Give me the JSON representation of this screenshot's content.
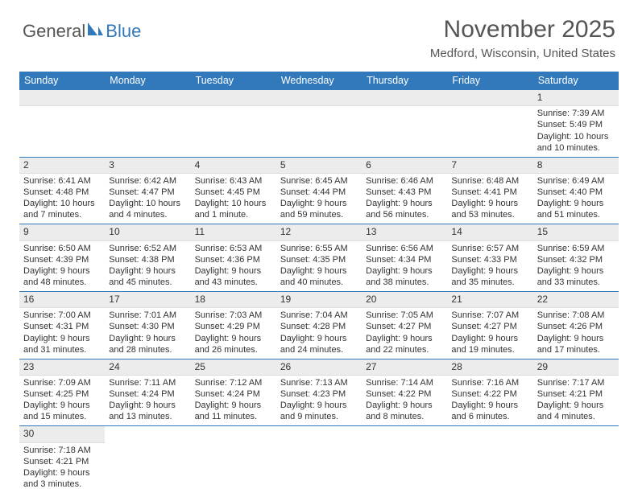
{
  "logo": {
    "part1": "General",
    "part2": "Blue"
  },
  "title": {
    "month": "November 2025",
    "location": "Medford, Wisconsin, United States"
  },
  "colors": {
    "headerBlue": "#3279bb",
    "grayBg": "#ececec",
    "text": "#333333"
  },
  "dayHeaders": [
    "Sunday",
    "Monday",
    "Tuesday",
    "Wednesday",
    "Thursday",
    "Friday",
    "Saturday"
  ],
  "weeks": [
    [
      null,
      null,
      null,
      null,
      null,
      null,
      {
        "n": "1",
        "sr": "Sunrise: 7:39 AM",
        "ss": "Sunset: 5:49 PM",
        "d1": "Daylight: 10 hours",
        "d2": "and 10 minutes."
      }
    ],
    [
      {
        "n": "2",
        "sr": "Sunrise: 6:41 AM",
        "ss": "Sunset: 4:48 PM",
        "d1": "Daylight: 10 hours",
        "d2": "and 7 minutes."
      },
      {
        "n": "3",
        "sr": "Sunrise: 6:42 AM",
        "ss": "Sunset: 4:47 PM",
        "d1": "Daylight: 10 hours",
        "d2": "and 4 minutes."
      },
      {
        "n": "4",
        "sr": "Sunrise: 6:43 AM",
        "ss": "Sunset: 4:45 PM",
        "d1": "Daylight: 10 hours",
        "d2": "and 1 minute."
      },
      {
        "n": "5",
        "sr": "Sunrise: 6:45 AM",
        "ss": "Sunset: 4:44 PM",
        "d1": "Daylight: 9 hours",
        "d2": "and 59 minutes."
      },
      {
        "n": "6",
        "sr": "Sunrise: 6:46 AM",
        "ss": "Sunset: 4:43 PM",
        "d1": "Daylight: 9 hours",
        "d2": "and 56 minutes."
      },
      {
        "n": "7",
        "sr": "Sunrise: 6:48 AM",
        "ss": "Sunset: 4:41 PM",
        "d1": "Daylight: 9 hours",
        "d2": "and 53 minutes."
      },
      {
        "n": "8",
        "sr": "Sunrise: 6:49 AM",
        "ss": "Sunset: 4:40 PM",
        "d1": "Daylight: 9 hours",
        "d2": "and 51 minutes."
      }
    ],
    [
      {
        "n": "9",
        "sr": "Sunrise: 6:50 AM",
        "ss": "Sunset: 4:39 PM",
        "d1": "Daylight: 9 hours",
        "d2": "and 48 minutes."
      },
      {
        "n": "10",
        "sr": "Sunrise: 6:52 AM",
        "ss": "Sunset: 4:38 PM",
        "d1": "Daylight: 9 hours",
        "d2": "and 45 minutes."
      },
      {
        "n": "11",
        "sr": "Sunrise: 6:53 AM",
        "ss": "Sunset: 4:36 PM",
        "d1": "Daylight: 9 hours",
        "d2": "and 43 minutes."
      },
      {
        "n": "12",
        "sr": "Sunrise: 6:55 AM",
        "ss": "Sunset: 4:35 PM",
        "d1": "Daylight: 9 hours",
        "d2": "and 40 minutes."
      },
      {
        "n": "13",
        "sr": "Sunrise: 6:56 AM",
        "ss": "Sunset: 4:34 PM",
        "d1": "Daylight: 9 hours",
        "d2": "and 38 minutes."
      },
      {
        "n": "14",
        "sr": "Sunrise: 6:57 AM",
        "ss": "Sunset: 4:33 PM",
        "d1": "Daylight: 9 hours",
        "d2": "and 35 minutes."
      },
      {
        "n": "15",
        "sr": "Sunrise: 6:59 AM",
        "ss": "Sunset: 4:32 PM",
        "d1": "Daylight: 9 hours",
        "d2": "and 33 minutes."
      }
    ],
    [
      {
        "n": "16",
        "sr": "Sunrise: 7:00 AM",
        "ss": "Sunset: 4:31 PM",
        "d1": "Daylight: 9 hours",
        "d2": "and 31 minutes."
      },
      {
        "n": "17",
        "sr": "Sunrise: 7:01 AM",
        "ss": "Sunset: 4:30 PM",
        "d1": "Daylight: 9 hours",
        "d2": "and 28 minutes."
      },
      {
        "n": "18",
        "sr": "Sunrise: 7:03 AM",
        "ss": "Sunset: 4:29 PM",
        "d1": "Daylight: 9 hours",
        "d2": "and 26 minutes."
      },
      {
        "n": "19",
        "sr": "Sunrise: 7:04 AM",
        "ss": "Sunset: 4:28 PM",
        "d1": "Daylight: 9 hours",
        "d2": "and 24 minutes."
      },
      {
        "n": "20",
        "sr": "Sunrise: 7:05 AM",
        "ss": "Sunset: 4:27 PM",
        "d1": "Daylight: 9 hours",
        "d2": "and 22 minutes."
      },
      {
        "n": "21",
        "sr": "Sunrise: 7:07 AM",
        "ss": "Sunset: 4:27 PM",
        "d1": "Daylight: 9 hours",
        "d2": "and 19 minutes."
      },
      {
        "n": "22",
        "sr": "Sunrise: 7:08 AM",
        "ss": "Sunset: 4:26 PM",
        "d1": "Daylight: 9 hours",
        "d2": "and 17 minutes."
      }
    ],
    [
      {
        "n": "23",
        "sr": "Sunrise: 7:09 AM",
        "ss": "Sunset: 4:25 PM",
        "d1": "Daylight: 9 hours",
        "d2": "and 15 minutes."
      },
      {
        "n": "24",
        "sr": "Sunrise: 7:11 AM",
        "ss": "Sunset: 4:24 PM",
        "d1": "Daylight: 9 hours",
        "d2": "and 13 minutes."
      },
      {
        "n": "25",
        "sr": "Sunrise: 7:12 AM",
        "ss": "Sunset: 4:24 PM",
        "d1": "Daylight: 9 hours",
        "d2": "and 11 minutes."
      },
      {
        "n": "26",
        "sr": "Sunrise: 7:13 AM",
        "ss": "Sunset: 4:23 PM",
        "d1": "Daylight: 9 hours",
        "d2": "and 9 minutes."
      },
      {
        "n": "27",
        "sr": "Sunrise: 7:14 AM",
        "ss": "Sunset: 4:22 PM",
        "d1": "Daylight: 9 hours",
        "d2": "and 8 minutes."
      },
      {
        "n": "28",
        "sr": "Sunrise: 7:16 AM",
        "ss": "Sunset: 4:22 PM",
        "d1": "Daylight: 9 hours",
        "d2": "and 6 minutes."
      },
      {
        "n": "29",
        "sr": "Sunrise: 7:17 AM",
        "ss": "Sunset: 4:21 PM",
        "d1": "Daylight: 9 hours",
        "d2": "and 4 minutes."
      }
    ],
    [
      {
        "n": "30",
        "sr": "Sunrise: 7:18 AM",
        "ss": "Sunset: 4:21 PM",
        "d1": "Daylight: 9 hours",
        "d2": "and 3 minutes."
      },
      null,
      null,
      null,
      null,
      null,
      null
    ]
  ]
}
